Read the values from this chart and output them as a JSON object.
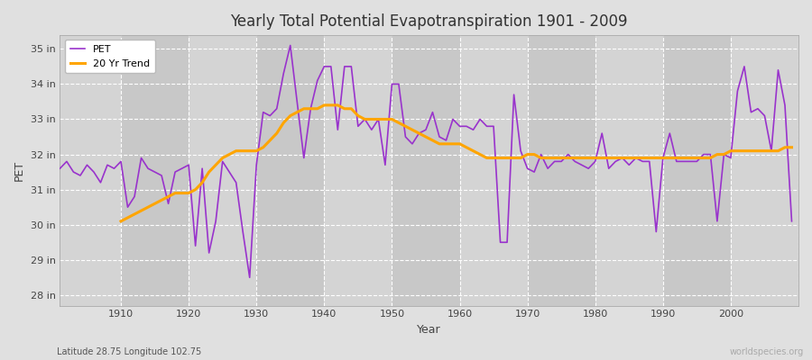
{
  "title": "Yearly Total Potential Evapotranspiration 1901 - 2009",
  "ylabel": "PET",
  "xlabel": "Year",
  "footnote_left": "Latitude 28.75 Longitude 102.75",
  "footnote_right": "worldspecies.org",
  "pet_color": "#9933CC",
  "trend_color": "#FFA500",
  "bg_color": "#e0e0e0",
  "plot_bg_color_light": "#d8d8d8",
  "plot_bg_color_dark": "#c8c8c8",
  "grid_color": "#ffffff",
  "ylim": [
    27.7,
    35.4
  ],
  "yticks": [
    28,
    29,
    30,
    31,
    32,
    33,
    34,
    35
  ],
  "ytick_labels": [
    "28 in",
    "29 in",
    "30 in",
    "31 in",
    "32 in",
    "33 in",
    "34 in",
    "35 in"
  ],
  "years": [
    1901,
    1902,
    1903,
    1904,
    1905,
    1906,
    1907,
    1908,
    1909,
    1910,
    1911,
    1912,
    1913,
    1914,
    1915,
    1916,
    1917,
    1918,
    1919,
    1920,
    1921,
    1922,
    1923,
    1924,
    1925,
    1926,
    1927,
    1928,
    1929,
    1930,
    1931,
    1932,
    1933,
    1934,
    1935,
    1936,
    1937,
    1938,
    1939,
    1940,
    1941,
    1942,
    1943,
    1944,
    1945,
    1946,
    1947,
    1948,
    1949,
    1950,
    1951,
    1952,
    1953,
    1954,
    1955,
    1956,
    1957,
    1958,
    1959,
    1960,
    1961,
    1962,
    1963,
    1964,
    1965,
    1966,
    1967,
    1968,
    1969,
    1970,
    1971,
    1972,
    1973,
    1974,
    1975,
    1976,
    1977,
    1978,
    1979,
    1980,
    1981,
    1982,
    1983,
    1984,
    1985,
    1986,
    1987,
    1988,
    1989,
    1990,
    1991,
    1992,
    1993,
    1994,
    1995,
    1996,
    1997,
    1998,
    1999,
    2000,
    2001,
    2002,
    2003,
    2004,
    2005,
    2006,
    2007,
    2008,
    2009
  ],
  "pet": [
    31.6,
    31.8,
    31.5,
    31.4,
    31.7,
    31.5,
    31.2,
    31.7,
    31.6,
    31.8,
    30.5,
    30.8,
    31.9,
    31.6,
    31.5,
    31.4,
    30.6,
    31.5,
    31.6,
    31.7,
    29.4,
    31.6,
    29.2,
    30.1,
    31.8,
    31.5,
    31.2,
    29.8,
    28.5,
    31.7,
    33.2,
    33.1,
    33.3,
    34.3,
    35.1,
    33.5,
    31.9,
    33.3,
    34.1,
    34.5,
    34.5,
    32.7,
    34.5,
    34.5,
    32.8,
    33.0,
    32.7,
    33.0,
    31.7,
    34.0,
    34.0,
    32.5,
    32.3,
    32.6,
    32.7,
    33.2,
    32.5,
    32.4,
    33.0,
    32.8,
    32.8,
    32.7,
    33.0,
    32.8,
    32.8,
    29.5,
    29.5,
    33.7,
    32.1,
    31.6,
    31.5,
    32.0,
    31.6,
    31.8,
    31.8,
    32.0,
    31.8,
    31.7,
    31.6,
    31.8,
    32.6,
    31.6,
    31.8,
    31.9,
    31.7,
    31.9,
    31.8,
    31.8,
    29.8,
    31.9,
    32.6,
    31.8,
    31.8,
    31.8,
    31.8,
    32.0,
    32.0,
    30.1,
    32.0,
    31.9,
    33.8,
    34.5,
    33.2,
    33.3,
    33.1,
    32.1,
    34.4,
    33.4,
    30.1
  ],
  "trend_years": [
    1910,
    1911,
    1912,
    1913,
    1914,
    1915,
    1916,
    1917,
    1918,
    1919,
    1920,
    1921,
    1922,
    1923,
    1924,
    1925,
    1926,
    1927,
    1928,
    1929,
    1930,
    1931,
    1932,
    1933,
    1934,
    1935,
    1936,
    1937,
    1938,
    1939,
    1940,
    1941,
    1942,
    1943,
    1944,
    1945,
    1946,
    1947,
    1948,
    1949,
    1950,
    1951,
    1952,
    1953,
    1954,
    1955,
    1956,
    1957,
    1958,
    1959,
    1960,
    1961,
    1962,
    1963,
    1964,
    1965,
    1966,
    1967,
    1968,
    1969,
    1970,
    1971,
    1972,
    1973,
    1974,
    1975,
    1976,
    1977,
    1978,
    1979,
    1980,
    1981,
    1982,
    1983,
    1984,
    1985,
    1986,
    1987,
    1988,
    1989,
    1990,
    1991,
    1992,
    1993,
    1994,
    1995,
    1996,
    1997,
    1998,
    1999,
    2000,
    2001,
    2002,
    2003,
    2004,
    2005,
    2006,
    2007,
    2008,
    2009
  ],
  "trend": [
    30.1,
    30.2,
    30.3,
    30.4,
    30.5,
    30.6,
    30.7,
    30.8,
    30.9,
    30.9,
    30.9,
    31.0,
    31.2,
    31.5,
    31.7,
    31.9,
    32.0,
    32.1,
    32.1,
    32.1,
    32.1,
    32.2,
    32.4,
    32.6,
    32.9,
    33.1,
    33.2,
    33.3,
    33.3,
    33.3,
    33.4,
    33.4,
    33.4,
    33.3,
    33.3,
    33.1,
    33.0,
    33.0,
    33.0,
    33.0,
    33.0,
    32.9,
    32.8,
    32.7,
    32.6,
    32.5,
    32.4,
    32.3,
    32.3,
    32.3,
    32.3,
    32.2,
    32.1,
    32.0,
    31.9,
    31.9,
    31.9,
    31.9,
    31.9,
    31.9,
    32.0,
    32.0,
    31.9,
    31.9,
    31.9,
    31.9,
    31.9,
    31.9,
    31.9,
    31.9,
    31.9,
    31.9,
    31.9,
    31.9,
    31.9,
    31.9,
    31.9,
    31.9,
    31.9,
    31.9,
    31.9,
    31.9,
    31.9,
    31.9,
    31.9,
    31.9,
    31.9,
    31.9,
    32.0,
    32.0,
    32.1,
    32.1,
    32.1,
    32.1,
    32.1,
    32.1,
    32.1,
    32.1,
    32.2,
    32.2
  ]
}
